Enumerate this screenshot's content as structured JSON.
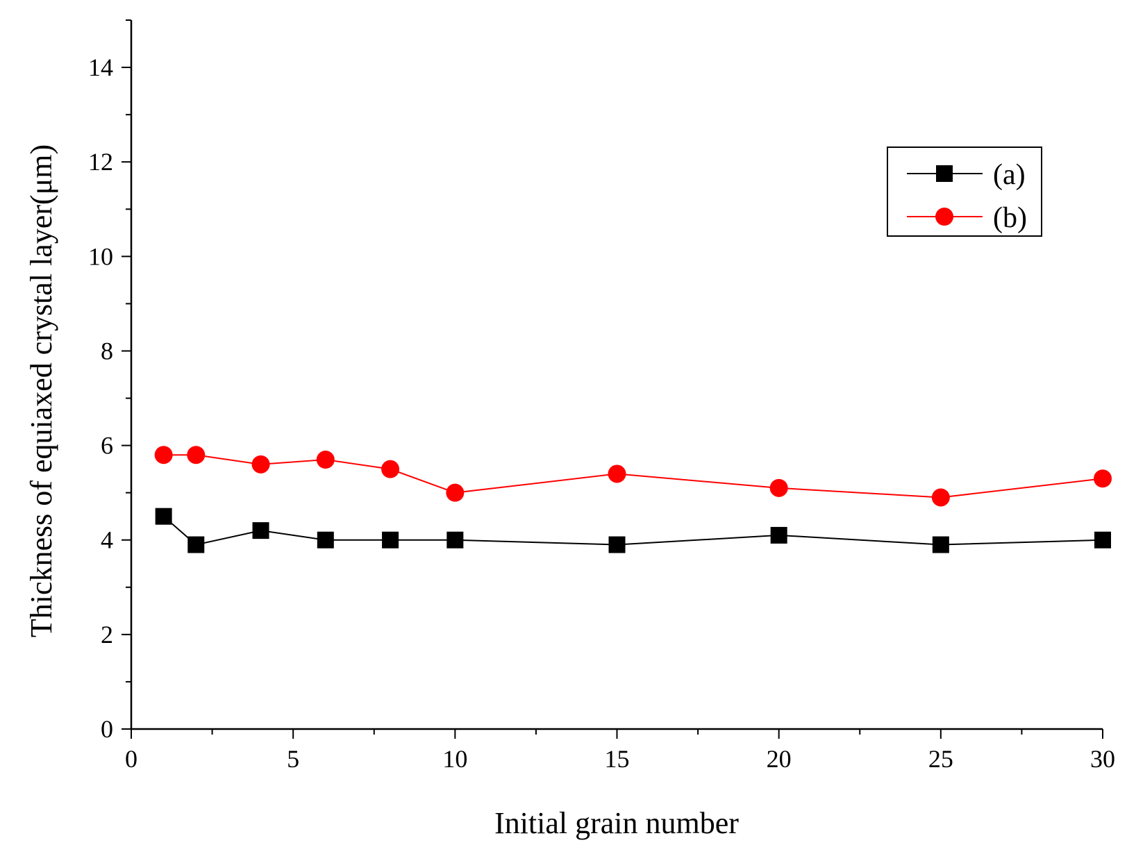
{
  "chart_data": {
    "type": "line",
    "title": "",
    "xlabel": "Initial grain number",
    "ylabel": "Thickness of equiaxed crystal layer(μm)",
    "xlim": [
      0,
      30
    ],
    "ylim": [
      0,
      15
    ],
    "x_ticks": [
      0,
      5,
      10,
      15,
      20,
      25,
      30
    ],
    "x_tick_labels": [
      "0",
      "5",
      "10",
      "15",
      "20",
      "25",
      "30"
    ],
    "x_minor_step": 2.5,
    "y_ticks": [
      0,
      2,
      4,
      6,
      8,
      10,
      12,
      14
    ],
    "y_tick_labels": [
      "0",
      "2",
      "4",
      "6",
      "8",
      "10",
      "12",
      "14"
    ],
    "y_minor_step": 1,
    "grid": false,
    "legend_position": "top-right",
    "series": [
      {
        "name": "(a)",
        "color": "#000000",
        "marker": "square",
        "x": [
          1,
          2,
          4,
          6,
          8,
          10,
          15,
          20,
          25,
          30
        ],
        "values": [
          4.5,
          3.9,
          4.2,
          4.0,
          4.0,
          4.0,
          3.9,
          4.1,
          3.9,
          4.0
        ]
      },
      {
        "name": "(b)",
        "color": "#ff0000",
        "marker": "circle",
        "x": [
          1,
          2,
          4,
          6,
          8,
          10,
          15,
          20,
          25,
          30
        ],
        "values": [
          5.8,
          5.8,
          5.6,
          5.7,
          5.5,
          5.0,
          5.4,
          5.1,
          4.9,
          5.3
        ]
      }
    ]
  }
}
